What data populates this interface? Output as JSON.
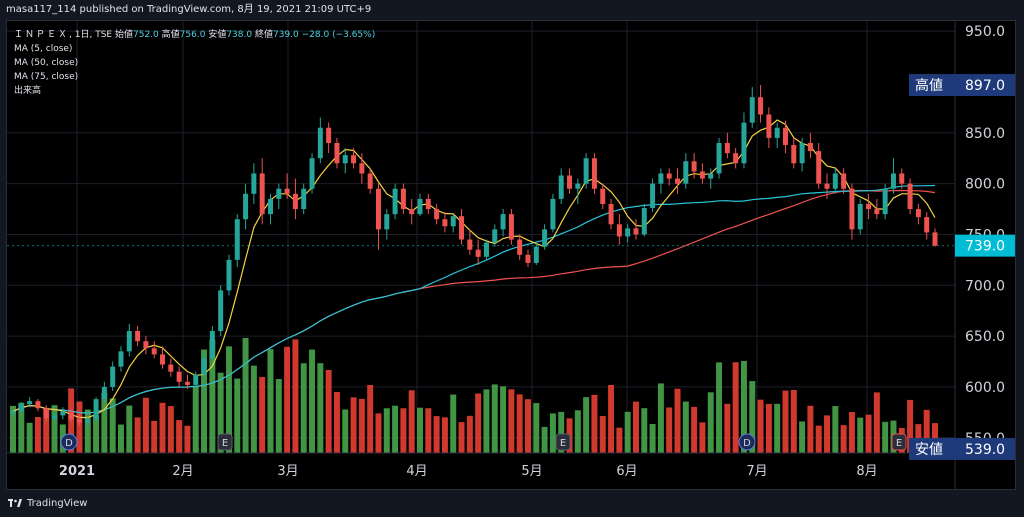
{
  "header": {
    "publisher_line": "masa117_114 published on TradingView.com, 8月 19, 2021 21:09 UTC+9"
  },
  "legend": {
    "symbol": "ＩＮＰＥＸ",
    "interval": "1日",
    "exchange": "TSE",
    "open_label": "始値",
    "open": "752.0",
    "high_label": "高値",
    "high": "756.0",
    "low_label": "安値",
    "low": "738.0",
    "close_label": "終値",
    "close": "739.0",
    "change": "−28.0 (−3.65%)",
    "ma5": "MA (5, close)",
    "ma50": "MA (50, close)",
    "ma75": "MA (75, close)",
    "volume": "出来高"
  },
  "footer": {
    "brand": "TradingView"
  },
  "chart_data": {
    "type": "candlestick",
    "y_ticks": [
      "950.0",
      "850.0",
      "800.0",
      "750.0",
      "700.0",
      "650.0",
      "600.0",
      "550.0"
    ],
    "y_range": [
      535,
      960
    ],
    "x_labels": [
      "2021",
      "2月",
      "3月",
      "4月",
      "5月",
      "6月",
      "7月",
      "8月"
    ],
    "price_markers": [
      {
        "label": "高値",
        "value": "897.0",
        "color": "#1f3a7a"
      },
      {
        "label": "",
        "value": "739.0",
        "color": "#00bcd4"
      },
      {
        "label": "安値",
        "value": "539.0",
        "color": "#1f3a7a"
      }
    ],
    "event_markers": [
      "D",
      "E",
      "E",
      "D",
      "E"
    ],
    "series_colors": {
      "up": "#26a69a",
      "down": "#ef5350",
      "ma5": "#f5d142",
      "ma50": "#26c6da",
      "ma75": "#ef5350",
      "vol_up": "#4caf50",
      "vol_down": "#f44336"
    },
    "candles": [
      [
        574,
        578,
        571,
        576
      ],
      [
        576,
        585,
        575,
        583
      ],
      [
        583,
        590,
        580,
        586
      ],
      [
        586,
        588,
        576,
        579
      ],
      [
        579,
        582,
        565,
        569
      ],
      [
        569,
        575,
        565,
        572
      ],
      [
        572,
        580,
        568,
        576
      ],
      [
        576,
        578,
        565,
        568
      ],
      [
        568,
        573,
        562,
        565
      ],
      [
        565,
        572,
        560,
        568
      ],
      [
        568,
        590,
        566,
        588
      ],
      [
        588,
        605,
        584,
        600
      ],
      [
        600,
        625,
        596,
        620
      ],
      [
        620,
        640,
        615,
        635
      ],
      [
        635,
        662,
        630,
        655
      ],
      [
        655,
        660,
        640,
        645
      ],
      [
        645,
        650,
        632,
        638
      ],
      [
        638,
        645,
        628,
        632
      ],
      [
        632,
        640,
        618,
        622
      ],
      [
        622,
        628,
        610,
        615
      ],
      [
        615,
        620,
        600,
        605
      ],
      [
        605,
        612,
        598,
        602
      ],
      [
        602,
        615,
        600,
        612
      ],
      [
        612,
        632,
        610,
        628
      ],
      [
        628,
        660,
        625,
        655
      ],
      [
        655,
        700,
        650,
        695
      ],
      [
        695,
        730,
        690,
        725
      ],
      [
        725,
        770,
        718,
        765
      ],
      [
        765,
        800,
        755,
        790
      ],
      [
        790,
        820,
        780,
        810
      ],
      [
        810,
        825,
        760,
        770
      ],
      [
        770,
        790,
        760,
        785
      ],
      [
        785,
        800,
        775,
        795
      ],
      [
        795,
        810,
        785,
        790
      ],
      [
        790,
        805,
        765,
        775
      ],
      [
        775,
        800,
        770,
        795
      ],
      [
        795,
        830,
        790,
        825
      ],
      [
        825,
        865,
        820,
        855
      ],
      [
        855,
        860,
        830,
        840
      ],
      [
        840,
        845,
        815,
        820
      ],
      [
        820,
        835,
        810,
        828
      ],
      [
        828,
        835,
        815,
        820
      ],
      [
        820,
        830,
        800,
        810
      ],
      [
        810,
        815,
        790,
        795
      ],
      [
        795,
        800,
        735,
        755
      ],
      [
        755,
        775,
        745,
        770
      ],
      [
        770,
        800,
        765,
        795
      ],
      [
        795,
        800,
        770,
        775
      ],
      [
        775,
        785,
        760,
        770
      ],
      [
        770,
        790,
        768,
        785
      ],
      [
        785,
        790,
        770,
        775
      ],
      [
        775,
        780,
        760,
        765
      ],
      [
        765,
        772,
        752,
        758
      ],
      [
        758,
        770,
        752,
        768
      ],
      [
        768,
        775,
        740,
        745
      ],
      [
        745,
        755,
        730,
        735
      ],
      [
        735,
        745,
        720,
        728
      ],
      [
        728,
        745,
        725,
        742
      ],
      [
        742,
        760,
        738,
        755
      ],
      [
        755,
        775,
        748,
        770
      ],
      [
        770,
        775,
        740,
        745
      ],
      [
        745,
        750,
        725,
        730
      ],
      [
        730,
        735,
        718,
        722
      ],
      [
        722,
        742,
        720,
        738
      ],
      [
        738,
        760,
        735,
        755
      ],
      [
        755,
        790,
        752,
        785
      ],
      [
        785,
        815,
        780,
        808
      ],
      [
        808,
        815,
        790,
        795
      ],
      [
        795,
        805,
        780,
        800
      ],
      [
        800,
        830,
        795,
        825
      ],
      [
        825,
        830,
        790,
        795
      ],
      [
        795,
        800,
        775,
        780
      ],
      [
        780,
        785,
        755,
        760
      ],
      [
        760,
        770,
        740,
        748
      ],
      [
        748,
        760,
        742,
        756
      ],
      [
        756,
        765,
        745,
        750
      ],
      [
        750,
        780,
        748,
        776
      ],
      [
        776,
        805,
        772,
        800
      ],
      [
        800,
        815,
        790,
        810
      ],
      [
        810,
        815,
        798,
        805
      ],
      [
        805,
        815,
        790,
        800
      ],
      [
        800,
        830,
        795,
        822
      ],
      [
        822,
        830,
        805,
        812
      ],
      [
        812,
        820,
        800,
        805
      ],
      [
        805,
        815,
        795,
        810
      ],
      [
        810,
        845,
        805,
        840
      ],
      [
        840,
        850,
        825,
        830
      ],
      [
        830,
        835,
        815,
        820
      ],
      [
        820,
        870,
        815,
        860
      ],
      [
        860,
        895,
        855,
        885
      ],
      [
        885,
        897,
        860,
        868
      ],
      [
        868,
        875,
        835,
        845
      ],
      [
        845,
        860,
        835,
        855
      ],
      [
        855,
        862,
        830,
        838
      ],
      [
        838,
        845,
        815,
        820
      ],
      [
        820,
        845,
        812,
        840
      ],
      [
        840,
        850,
        825,
        832
      ],
      [
        832,
        840,
        795,
        800
      ],
      [
        800,
        810,
        785,
        795
      ],
      [
        795,
        815,
        790,
        810
      ],
      [
        810,
        815,
        790,
        795
      ],
      [
        795,
        800,
        745,
        755
      ],
      [
        755,
        785,
        750,
        780
      ],
      [
        780,
        790,
        765,
        775
      ],
      [
        775,
        785,
        765,
        770
      ],
      [
        770,
        800,
        765,
        795
      ],
      [
        795,
        825,
        790,
        810
      ],
      [
        810,
        815,
        795,
        800
      ],
      [
        800,
        805,
        770,
        775
      ],
      [
        775,
        780,
        760,
        767
      ],
      [
        767,
        772,
        745,
        752
      ],
      [
        752,
        756,
        738,
        739
      ]
    ]
  }
}
